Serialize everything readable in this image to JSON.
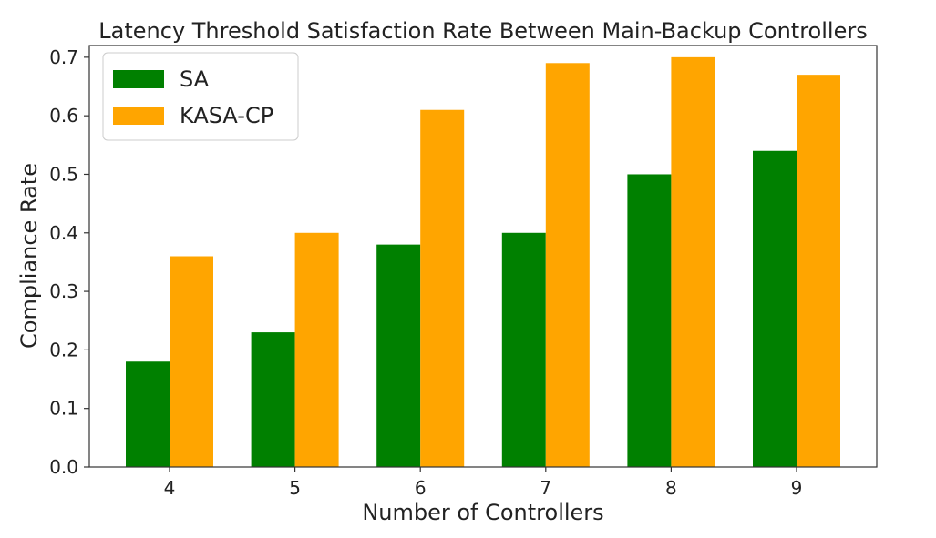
{
  "chart_data": {
    "type": "bar",
    "title": "Latency Threshold Satisfaction Rate Between Main-Backup Controllers",
    "xlabel": "Number of Controllers",
    "ylabel": "Compliance Rate",
    "categories": [
      "4",
      "5",
      "6",
      "7",
      "8",
      "9"
    ],
    "series": [
      {
        "name": "SA",
        "values": [
          0.18,
          0.23,
          0.38,
          0.4,
          0.5,
          0.54
        ],
        "color": "#008000"
      },
      {
        "name": "KASA-CP",
        "values": [
          0.36,
          0.4,
          0.61,
          0.69,
          0.7,
          0.67
        ],
        "color": "#ffa500"
      }
    ],
    "ylim": [
      0,
      0.72
    ],
    "yticks": [
      "0.0",
      "0.1",
      "0.2",
      "0.3",
      "0.4",
      "0.5",
      "0.6",
      "0.7"
    ],
    "grid": false,
    "legend": "top-left"
  }
}
